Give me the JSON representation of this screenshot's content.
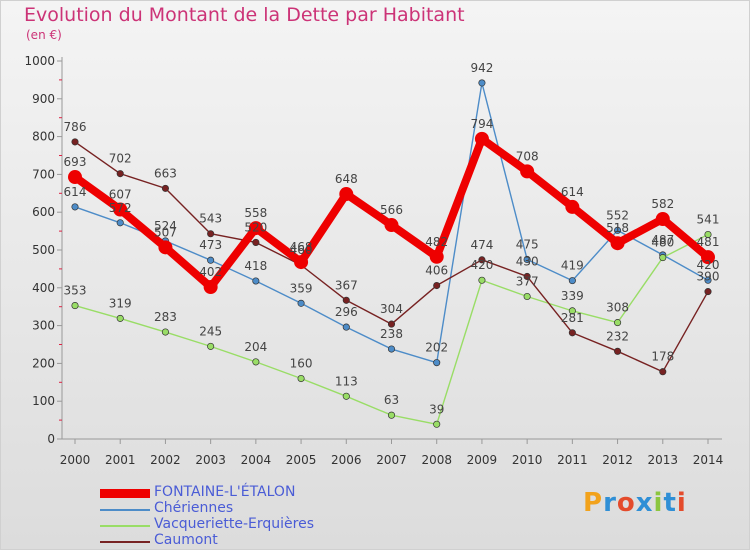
{
  "title": "Evolution du Montant de la Dette par Habitant",
  "unit_label": "(en €)",
  "logo": {
    "text": "Proxiti",
    "letter_colors": [
      "#f2a21b",
      "#2f8fd6",
      "#e44b2b",
      "#2f8fd6",
      "#8cc63f",
      "#2f8fd6",
      "#e44b2b"
    ]
  },
  "chart_data": {
    "type": "line",
    "title": "Evolution du Montant de la Dette par Habitant",
    "ylabel": "(en €)",
    "xlabel": "",
    "ylim": [
      0,
      1000
    ],
    "yticks": [
      0,
      100,
      200,
      300,
      400,
      500,
      600,
      700,
      800,
      900,
      1000
    ],
    "x": [
      "2000",
      "2001",
      "2002",
      "2003",
      "2004",
      "2005",
      "2006",
      "2007",
      "2008",
      "2009",
      "2010",
      "2011",
      "2012",
      "2013",
      "2014"
    ],
    "grid": false,
    "legend_position": "bottom-left",
    "series": [
      {
        "name": "FONTAINE-L'ÉTALON",
        "color": "#ee0000",
        "values": [
          693,
          607,
          507,
          402,
          558,
          468,
          648,
          566,
          482,
          794,
          708,
          614,
          518,
          582,
          481
        ]
      },
      {
        "name": "Chériennes",
        "color": "#4d8cc8",
        "values": [
          614,
          572,
          524,
          473,
          418,
          359,
          296,
          238,
          202,
          942,
          475,
          419,
          552,
          487,
          420
        ]
      },
      {
        "name": "Vacqueriette-Erquières",
        "color": "#99dd66",
        "values": [
          353,
          319,
          283,
          245,
          204,
          160,
          113,
          63,
          39,
          420,
          377,
          339,
          308,
          480,
          541
        ]
      },
      {
        "name": "Caumont",
        "color": "#772222",
        "values": [
          786,
          702,
          663,
          543,
          520,
          460,
          367,
          304,
          406,
          474,
          430,
          281,
          232,
          178,
          390
        ]
      }
    ]
  }
}
